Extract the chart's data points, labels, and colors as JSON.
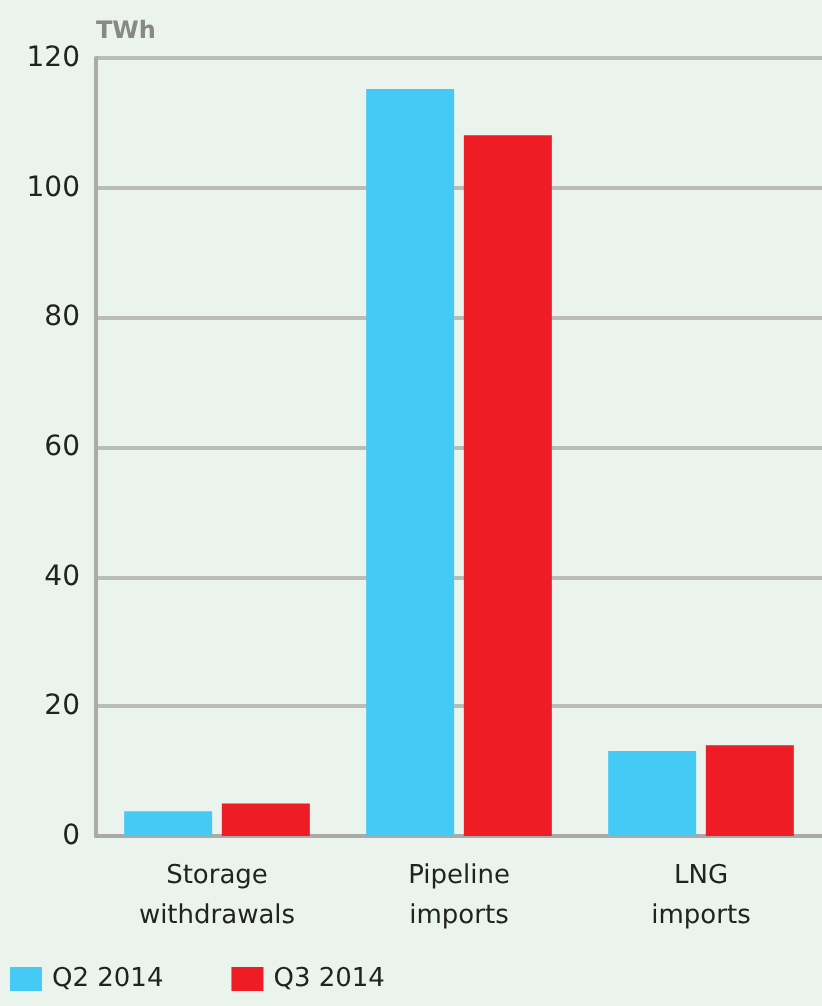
{
  "chart_data": {
    "type": "bar",
    "ylabel": "TWh",
    "categories": [
      "Storage\nwithdrawals",
      "Pipeline\nimports",
      "LNG\nimports"
    ],
    "series": [
      {
        "name": "Q2 2014",
        "color": "#45c9f5",
        "values": [
          3.8,
          115.2,
          13.1
        ]
      },
      {
        "name": "Q3 2014",
        "color": "#ee1c25",
        "values": [
          5.0,
          108.1,
          14.0
        ]
      }
    ],
    "ylim": [
      0,
      120
    ],
    "yticks": [
      0,
      20,
      40,
      60,
      80,
      100,
      120
    ],
    "grid": "y",
    "legend": "bottom left"
  }
}
